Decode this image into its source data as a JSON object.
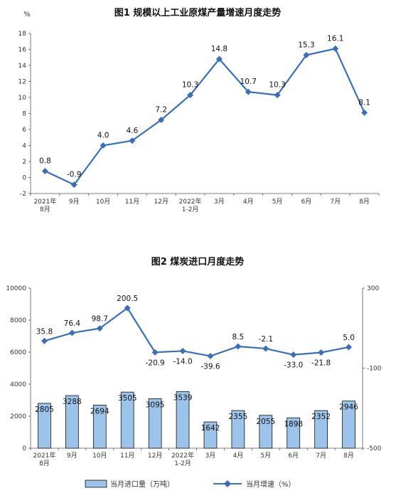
{
  "chart_data": [
    {
      "type": "line",
      "title": "图1  规模以上工业原煤产量增速月度走势",
      "ylabel": "%",
      "categories": [
        [
          "2021年",
          "8月"
        ],
        [
          "9月"
        ],
        [
          "10月"
        ],
        [
          "11月"
        ],
        [
          "12月"
        ],
        [
          "2022年",
          "1-2月"
        ],
        [
          "3月"
        ],
        [
          "4月"
        ],
        [
          "5月"
        ],
        [
          "6月"
        ],
        [
          "7月"
        ],
        [
          "8月"
        ]
      ],
      "yticks": [
        "18",
        "16",
        "14",
        "12",
        "10",
        "8",
        "6",
        "4",
        "2",
        "0",
        "-2"
      ],
      "ylim": [
        -2,
        18
      ],
      "series": [
        {
          "values": [
            0.8,
            -0.9,
            4.0,
            4.6,
            7.2,
            10.3,
            14.8,
            10.7,
            10.3,
            15.3,
            16.1,
            8.1
          ],
          "labels": [
            "0.8",
            "-0.9",
            "4.0",
            "4.6",
            "7.2",
            "10.3",
            "14.8",
            "10.7",
            "10.3",
            "15.3",
            "16.1",
            "8.1"
          ],
          "color": "#3a6fb7"
        }
      ],
      "grid": false
    },
    {
      "type": "bar",
      "title": "图2  煤炭进口月度走势",
      "categories": [
        [
          "2021年",
          "8月"
        ],
        [
          "9月"
        ],
        [
          "10月"
        ],
        [
          "11月"
        ],
        [
          "12月"
        ],
        [
          "2022年",
          "1-2月"
        ],
        [
          "3月"
        ],
        [
          "4月"
        ],
        [
          "5月"
        ],
        [
          "6月"
        ],
        [
          "7月"
        ],
        [
          "8月"
        ]
      ],
      "yticks_left": [
        "10000",
        "8000",
        "6000",
        "4000",
        "2000",
        "0"
      ],
      "ylim_left": [
        0,
        10000
      ],
      "yticks_right": [
        "300",
        "-100",
        "-500"
      ],
      "ylim_right": [
        -500,
        300
      ],
      "series": [
        {
          "name": "当月进口量（万吨）",
          "type": "bar",
          "axis": "left",
          "values": [
            2805,
            3288,
            2694,
            3505,
            3095,
            3539,
            1642,
            2355,
            2055,
            1898,
            2352,
            2946
          ],
          "labels": [
            "2805",
            "3288",
            "2694",
            "3505",
            "3095",
            "3539",
            "1642",
            "2355",
            "2055",
            "1898",
            "2352",
            "2946"
          ],
          "color": "#9cc3ea",
          "edge": "#111111"
        },
        {
          "name": "当月增速（%）",
          "type": "line",
          "axis": "right",
          "values": [
            35.8,
            76.4,
            98.7,
            200.5,
            -20.9,
            -14.0,
            -39.6,
            8.5,
            -2.1,
            -33.0,
            -21.8,
            5.0
          ],
          "labels": [
            "35.8",
            "76.4",
            "98.7",
            "200.5",
            "-20.9",
            "-14.0",
            "-39.6",
            "8.5",
            "-2.1",
            "-33.0",
            "-21.8",
            "5.0"
          ],
          "color": "#3a6fb7"
        }
      ],
      "legend": "bottom",
      "grid": false
    }
  ]
}
